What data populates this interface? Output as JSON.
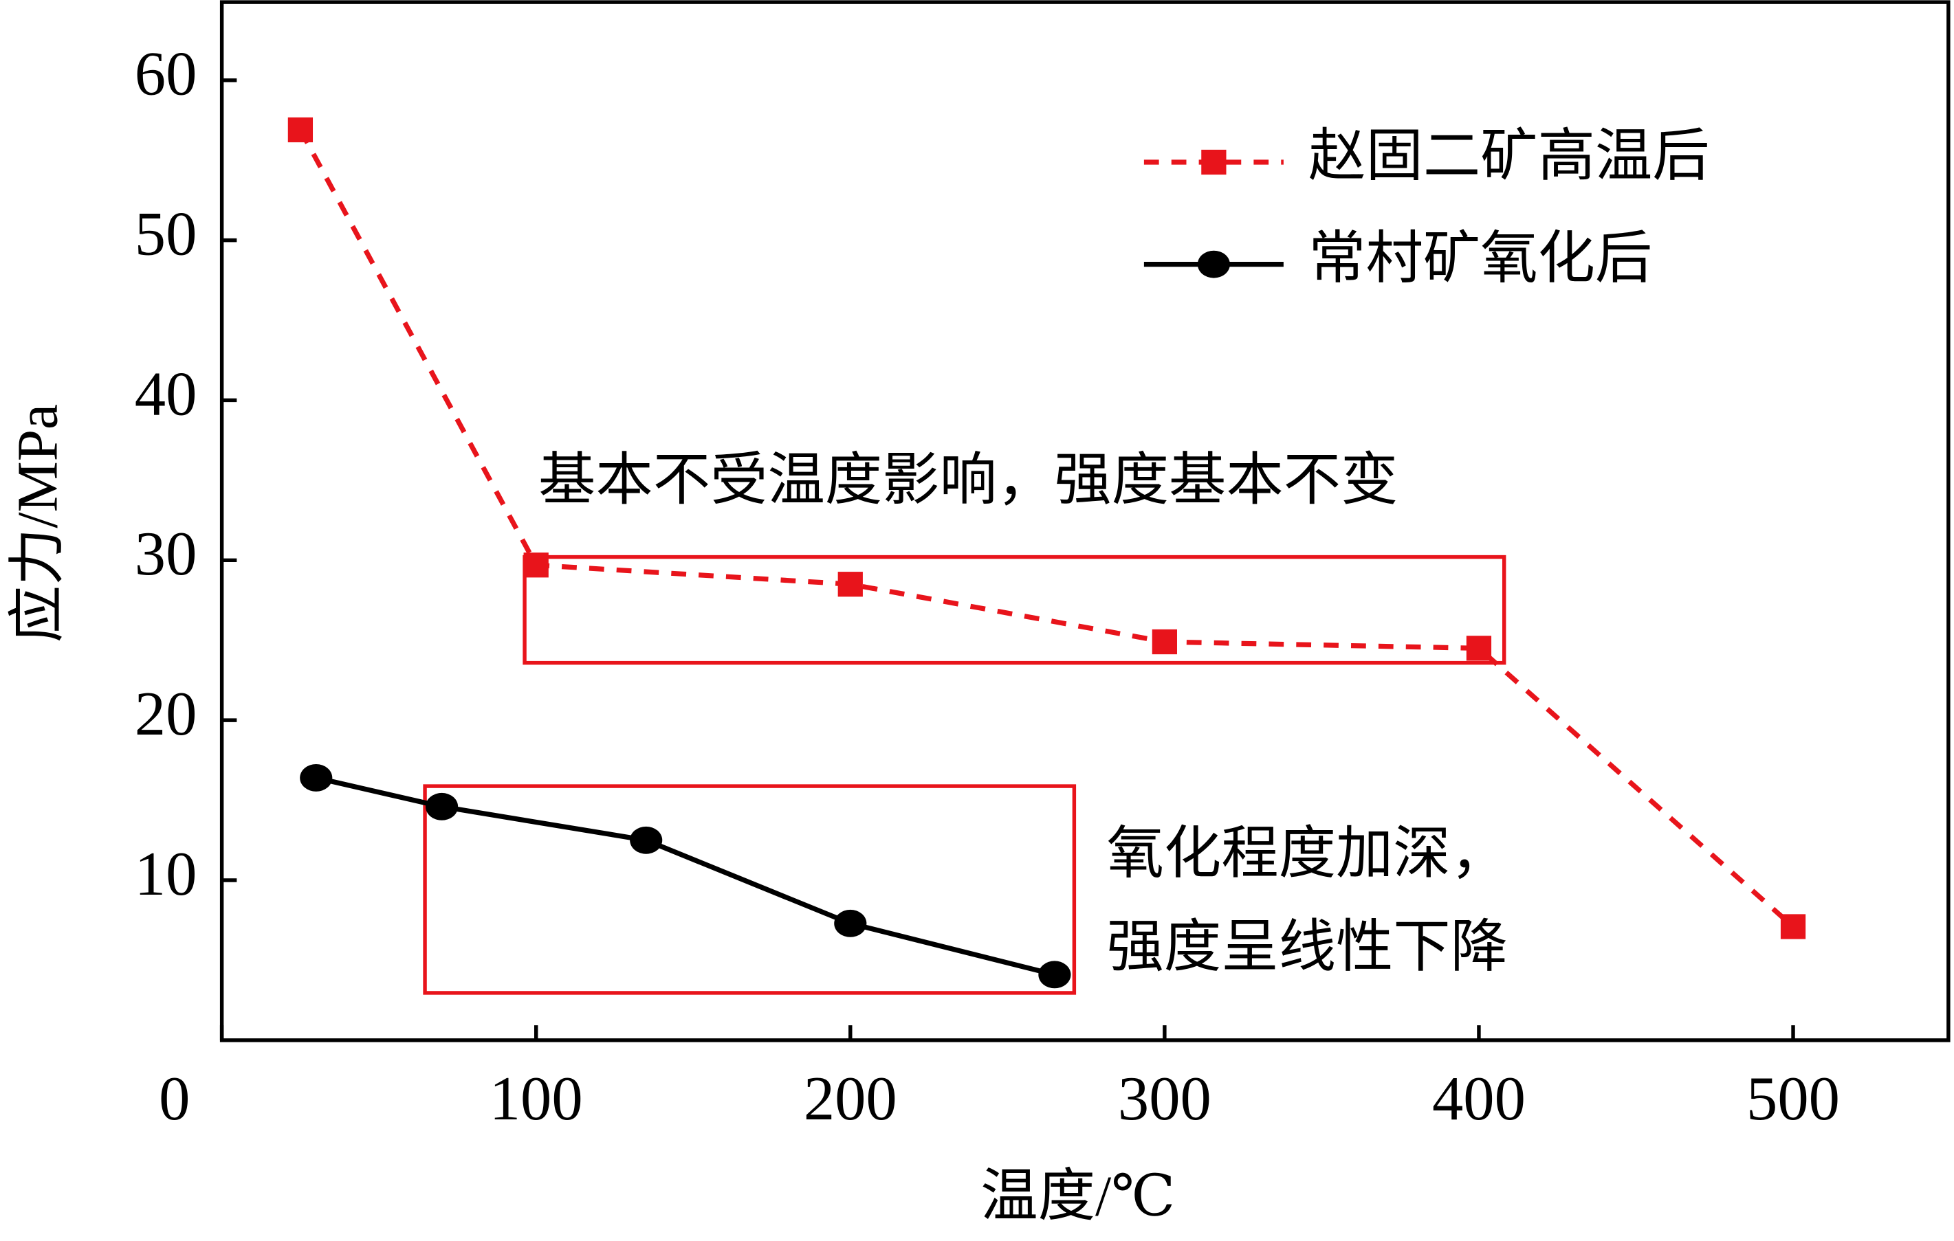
{
  "chart_data": {
    "type": "line",
    "xlabel": "温度/℃",
    "ylabel": "应力/MPa",
    "xlim": [
      0,
      550
    ],
    "ylim": [
      0,
      65
    ],
    "xticks": [
      0,
      100,
      200,
      300,
      400,
      500
    ],
    "yticks": [
      10,
      20,
      30,
      40,
      50,
      60
    ],
    "legend": "upper right",
    "annotations": [
      "基本不受温度影响，强度基本不变",
      "氧化程度加深，",
      "强度呈线性下降"
    ],
    "series": [
      {
        "name": "赵固二矿高温后",
        "color": "#e8141b",
        "dash": true,
        "marker": "square",
        "x": [
          25,
          100,
          200,
          300,
          400,
          500
        ],
        "values": [
          56.9,
          29.7,
          28.5,
          24.9,
          24.5,
          7.1
        ]
      },
      {
        "name": "常村矿氧化后",
        "color": "#000000",
        "dash": false,
        "marker": "circle",
        "x": [
          30,
          70,
          135,
          200,
          265
        ],
        "values": [
          16.4,
          14.6,
          12.5,
          7.3,
          4.1
        ]
      }
    ]
  }
}
